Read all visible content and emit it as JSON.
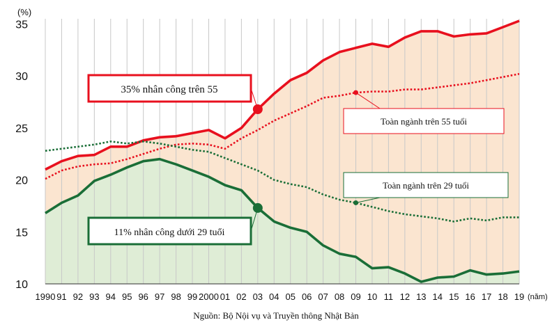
{
  "chart_data": {
    "type": "line",
    "ylabel": "(%)",
    "xlabel": "(năm)",
    "ylim": [
      10,
      35.5
    ],
    "yticks": [
      10,
      15,
      20,
      25,
      30,
      35
    ],
    "grid": "vertical",
    "categories": [
      "1990",
      "91",
      "92",
      "93",
      "94",
      "95",
      "96",
      "97",
      "98",
      "99",
      "2000",
      "01",
      "02",
      "03",
      "04",
      "05",
      "06",
      "07",
      "08",
      "09",
      "10",
      "11",
      "12",
      "13",
      "14",
      "15",
      "16",
      "17",
      "18",
      "19"
    ],
    "series": [
      {
        "name": "35% nhân công trên 55",
        "color": "#e8101e",
        "style": "solid",
        "values": [
          21.0,
          21.8,
          22.3,
          22.4,
          23.2,
          23.2,
          23.8,
          24.1,
          24.2,
          24.5,
          24.8,
          24.0,
          25.0,
          26.8,
          28.3,
          29.6,
          30.3,
          31.5,
          32.3,
          32.7,
          33.1,
          32.8,
          33.7,
          34.3,
          34.3,
          33.8,
          34.0,
          34.1,
          34.7,
          35.3
        ]
      },
      {
        "name": "Toàn ngành trên 55 tuổi",
        "color": "#e8101e",
        "style": "dotted",
        "values": [
          20.1,
          20.9,
          21.3,
          21.5,
          21.6,
          22.0,
          22.5,
          23.0,
          23.4,
          23.5,
          23.4,
          23.0,
          24.0,
          24.8,
          25.7,
          26.4,
          27.1,
          27.9,
          28.1,
          28.4,
          28.5,
          28.5,
          28.7,
          28.7,
          28.9,
          29.1,
          29.3,
          29.6,
          29.9,
          30.2
        ]
      },
      {
        "name": "11% nhân công dưới 29 tuổi",
        "color": "#1a6e37",
        "style": "solid",
        "values": [
          16.8,
          17.8,
          18.5,
          19.9,
          20.5,
          21.2,
          21.8,
          22.0,
          21.5,
          20.9,
          20.3,
          19.5,
          19.0,
          17.3,
          16.0,
          15.4,
          15.0,
          13.7,
          12.9,
          12.6,
          11.5,
          11.6,
          11.0,
          10.2,
          10.6,
          10.7,
          11.3,
          10.9,
          11.0,
          11.2
        ]
      },
      {
        "name": "Toàn ngành trên 29 tuổi",
        "color": "#1a6e37",
        "style": "dotted",
        "values": [
          22.8,
          23.0,
          23.2,
          23.4,
          23.7,
          23.5,
          23.7,
          23.5,
          23.2,
          22.9,
          22.7,
          22.1,
          21.5,
          20.9,
          20.0,
          19.6,
          19.3,
          18.6,
          18.1,
          17.8,
          17.4,
          17.0,
          16.7,
          16.5,
          16.3,
          16.0,
          16.3,
          16.1,
          16.4,
          16.4
        ]
      }
    ],
    "markers": [
      {
        "series": 0,
        "index": 13
      },
      {
        "series": 1,
        "index": 19
      },
      {
        "series": 2,
        "index": 13
      },
      {
        "series": 3,
        "index": 19
      }
    ]
  },
  "annotations": {
    "over55_box": "35% nhân công trên 55",
    "over55_all": "Toàn ngành trên 55 tuổi",
    "under29_box": "11% nhân công dưới 29 tuổi",
    "over29_all": "Toàn ngành trên 29 tuổi"
  },
  "source": "Nguồn: Bộ Nội vụ và Truyền thông Nhật Bản"
}
